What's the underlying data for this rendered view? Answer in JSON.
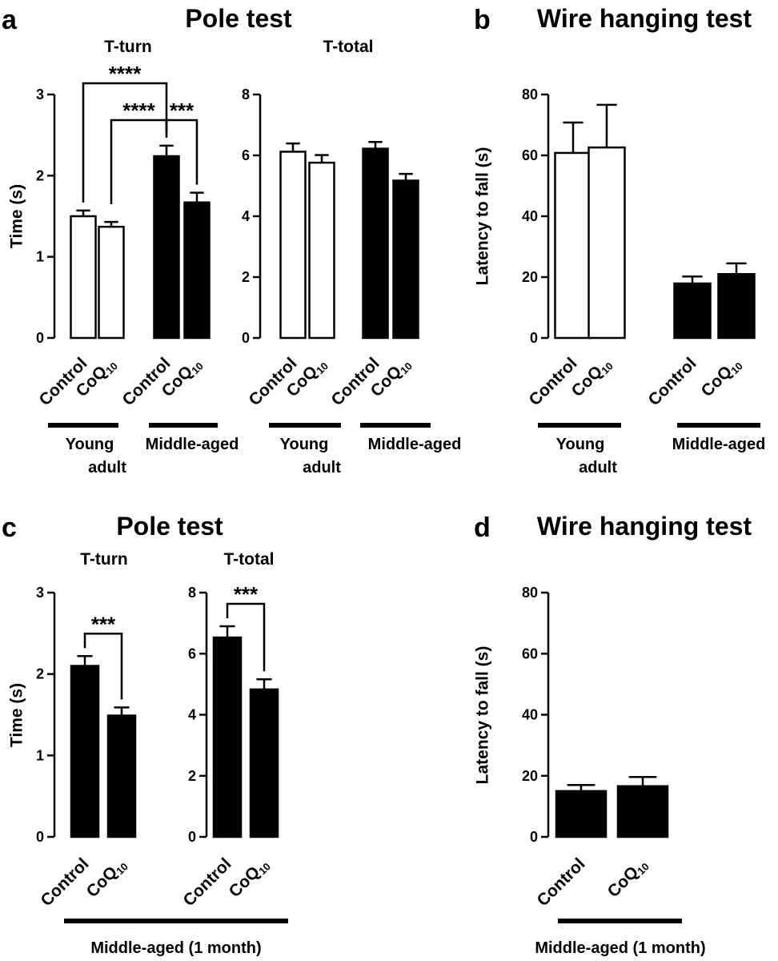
{
  "panels": {
    "a": {
      "letter": "a",
      "title": "Pole test"
    },
    "b": {
      "letter": "b",
      "title": "Wire hanging test"
    },
    "c": {
      "letter": "c",
      "title": "Pole test"
    },
    "d": {
      "letter": "d",
      "title": "Wire hanging test"
    }
  },
  "chart_data": [
    {
      "id": "a-turn",
      "type": "bar",
      "title": "T-turn",
      "ylabel": "Time (s)",
      "ylim": [
        0,
        3
      ],
      "yticks": [
        "0",
        "1",
        "2",
        "3"
      ],
      "categories": [
        "Control",
        "CoQ10",
        "Control",
        "CoQ10"
      ],
      "values": [
        1.5,
        1.37,
        2.24,
        1.67
      ],
      "errors": [
        0.07,
        0.06,
        0.13,
        0.12
      ],
      "fills": [
        "#ffffff",
        "#ffffff",
        "#000000",
        "#000000"
      ],
      "groups": [
        {
          "label": [
            "Young",
            "adult"
          ],
          "bars": [
            0,
            1
          ]
        },
        {
          "label": [
            "Middle-aged"
          ],
          "bars": [
            2,
            3
          ]
        }
      ],
      "significance": [
        {
          "from": 0,
          "to": 2,
          "label": "****"
        },
        {
          "from": 1,
          "to": 2,
          "label": "****"
        },
        {
          "from": 2,
          "to": 3,
          "label": "***"
        }
      ]
    },
    {
      "id": "a-total",
      "type": "bar",
      "title": "T-total",
      "ylabel": "",
      "ylim": [
        0,
        8
      ],
      "yticks": [
        "0",
        "2",
        "4",
        "6",
        "8"
      ],
      "categories": [
        "Control",
        "CoQ10",
        "Control",
        "CoQ10"
      ],
      "values": [
        6.12,
        5.76,
        6.22,
        5.17
      ],
      "errors": [
        0.27,
        0.25,
        0.22,
        0.22
      ],
      "fills": [
        "#ffffff",
        "#ffffff",
        "#000000",
        "#000000"
      ],
      "groups": [
        {
          "label": [
            "Young",
            "adult"
          ],
          "bars": [
            0,
            1
          ]
        },
        {
          "label": [
            "Middle-aged"
          ],
          "bars": [
            2,
            3
          ]
        }
      ],
      "significance": []
    },
    {
      "id": "b",
      "type": "bar",
      "title": "",
      "ylabel": "Latency to fall (s)",
      "ylim": [
        0,
        80
      ],
      "yticks": [
        "0",
        "20",
        "40",
        "60",
        "80"
      ],
      "categories": [
        "Control",
        "CoQ10",
        "Control",
        "CoQ10"
      ],
      "values": [
        60.8,
        62.6,
        17.9,
        21.0
      ],
      "errors": [
        10.0,
        14.0,
        2.3,
        3.5
      ],
      "fills": [
        "#ffffff",
        "#ffffff",
        "#000000",
        "#000000"
      ],
      "groups": [
        {
          "label": [
            "Young",
            "adult"
          ],
          "bars": [
            0,
            1
          ]
        },
        {
          "label": [
            "Middle-aged"
          ],
          "bars": [
            2,
            3
          ]
        }
      ],
      "significance": []
    },
    {
      "id": "c-turn",
      "type": "bar",
      "title": "T-turn",
      "ylabel": "Time (s)",
      "ylim": [
        0,
        3
      ],
      "yticks": [
        "0",
        "1",
        "2",
        "3"
      ],
      "categories": [
        "Control",
        "CoQ10"
      ],
      "values": [
        2.1,
        1.49
      ],
      "errors": [
        0.12,
        0.1
      ],
      "fills": [
        "#000000",
        "#000000"
      ],
      "groups": [],
      "significance": [
        {
          "from": 0,
          "to": 1,
          "label": "***"
        }
      ]
    },
    {
      "id": "c-total",
      "type": "bar",
      "title": "T-total",
      "ylabel": "",
      "ylim": [
        0,
        8
      ],
      "yticks": [
        "0",
        "2",
        "4",
        "6",
        "8"
      ],
      "categories": [
        "Control",
        "CoQ10"
      ],
      "values": [
        6.53,
        4.83
      ],
      "errors": [
        0.37,
        0.33
      ],
      "fills": [
        "#000000",
        "#000000"
      ],
      "groups": [],
      "significance": [
        {
          "from": 0,
          "to": 1,
          "label": "***"
        }
      ]
    },
    {
      "id": "d",
      "type": "bar",
      "title": "",
      "ylabel": "Latency to fall (s)",
      "ylim": [
        0,
        80
      ],
      "yticks": [
        "0",
        "20",
        "40",
        "60",
        "80"
      ],
      "categories": [
        "Control",
        "CoQ10"
      ],
      "values": [
        15.0,
        16.6
      ],
      "errors": [
        2.0,
        3.0
      ],
      "fills": [
        "#000000",
        "#000000"
      ],
      "groups": [],
      "significance": []
    }
  ],
  "shared_groups": [
    {
      "label": [
        "Middle-aged (1 month)"
      ],
      "charts": [
        "c-turn",
        "c-total"
      ]
    },
    {
      "label": [
        "Middle-aged (1 month)"
      ],
      "charts": [
        "d"
      ]
    }
  ]
}
